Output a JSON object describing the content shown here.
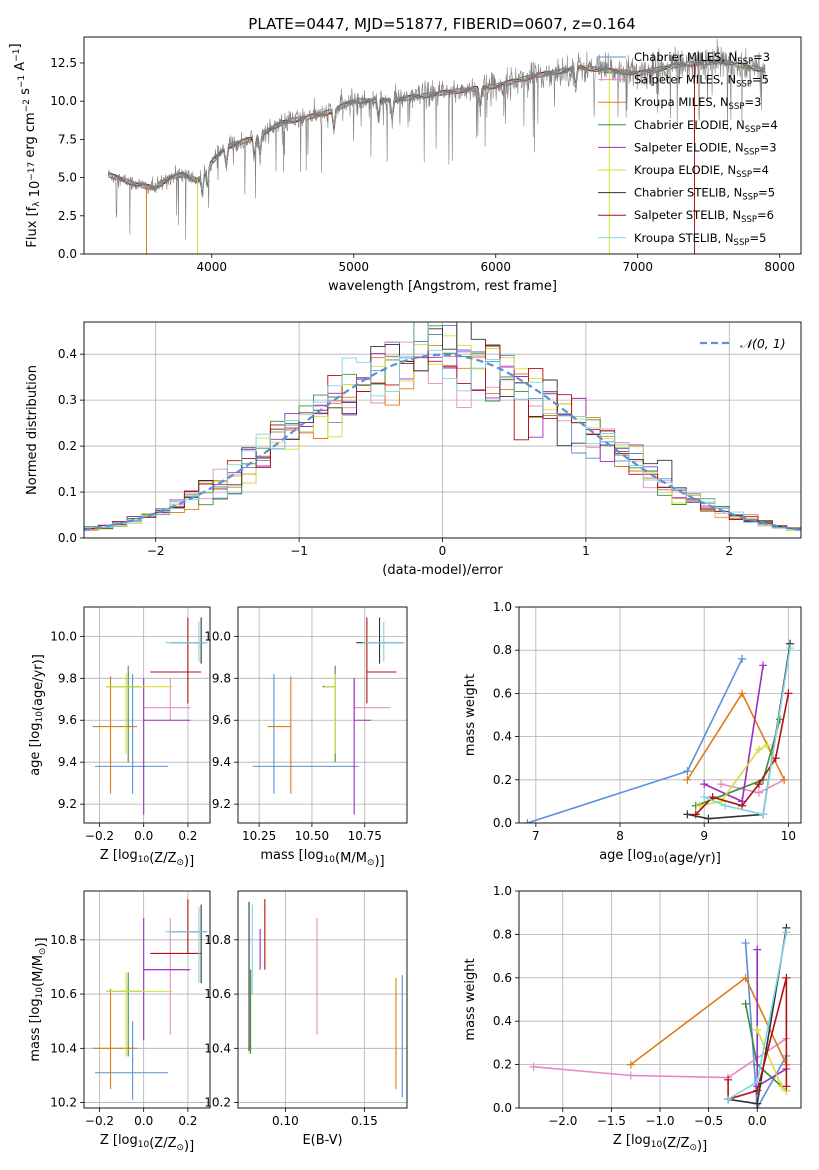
{
  "figure_title": "PLATE=0447, MJD=51877, FIBERID=0607, z=0.164",
  "colors": {
    "Chabrier MILES": "#5b8fd8",
    "Salpeter MILES": "#e889c4",
    "Kroupa MILES": "#e07b1a",
    "Chabrier ELODIE": "#3a8f3a",
    "Salpeter ELODIE": "#9b2fc4",
    "Kroupa ELODIE": "#d6df35",
    "Chabrier STELIB": "#333333",
    "Salpeter STELIB": "#b01010",
    "Kroupa STELIB": "#7fd6e0",
    "observed": "#808080"
  },
  "chart_data": [
    {
      "id": "spectrum",
      "type": "line",
      "title": "PLATE=0447, MJD=51877, FIBERID=0607, z=0.164",
      "xlabel": "wavelength [Angstrom, rest frame]",
      "ylabel": "Flux [f_λ 10^-17 erg cm^-2 s^-1 A^-1]",
      "xlim": [
        3100,
        8150
      ],
      "ylim": [
        0,
        14.2
      ],
      "xticks": [
        "4000",
        "5000",
        "6000",
        "7000",
        "8000"
      ],
      "yticks": [
        "0.0",
        "2.5",
        "5.0",
        "7.5",
        "10.0",
        "12.5"
      ],
      "legend_position": "right",
      "legend": [
        {
          "label": "Chabrier MILES, N_SSP=3",
          "base": "Chabrier MILES, N",
          "sub": "SSP",
          "tail": "=3",
          "color": "Chabrier MILES"
        },
        {
          "label": "Salpeter MILES, N_SSP=5",
          "base": "Salpeter MILES, N",
          "sub": "SSP",
          "tail": "=5",
          "color": "Salpeter MILES"
        },
        {
          "label": "Kroupa MILES, N_SSP=3",
          "base": "Kroupa MILES, N",
          "sub": "SSP",
          "tail": "=3",
          "color": "Kroupa MILES"
        },
        {
          "label": "Chabrier ELODIE, N_SSP=4",
          "base": "Chabrier ELODIE, N",
          "sub": "SSP",
          "tail": "=4",
          "color": "Chabrier ELODIE"
        },
        {
          "label": "Salpeter ELODIE, N_SSP=3",
          "base": "Salpeter ELODIE, N",
          "sub": "SSP",
          "tail": "=3",
          "color": "Salpeter ELODIE"
        },
        {
          "label": "Kroupa ELODIE, N_SSP=4",
          "base": "Kroupa ELODIE, N",
          "sub": "SSP",
          "tail": "=4",
          "color": "Kroupa ELODIE"
        },
        {
          "label": "Chabrier STELIB, N_SSP=5",
          "base": "Chabrier STELIB, N",
          "sub": "SSP",
          "tail": "=5",
          "color": "Chabrier STELIB"
        },
        {
          "label": "Salpeter STELIB, N_SSP=6",
          "base": "Salpeter STELIB, N",
          "sub": "SSP",
          "tail": "=6",
          "color": "Salpeter STELIB"
        },
        {
          "label": "Kroupa STELIB, N_SSP=5",
          "base": "Kroupa STELIB, N",
          "sub": "SSP",
          "tail": "=5",
          "color": "Kroupa STELIB"
        }
      ],
      "continuum": [
        [
          3270,
          5.2
        ],
        [
          3450,
          4.6
        ],
        [
          3600,
          4.3
        ],
        [
          3700,
          5.0
        ],
        [
          3800,
          5.2
        ],
        [
          3900,
          4.8
        ],
        [
          4000,
          6.0
        ],
        [
          4100,
          7.0
        ],
        [
          4300,
          7.6
        ],
        [
          4500,
          8.6
        ],
        [
          4800,
          9.2
        ],
        [
          5000,
          10.0
        ],
        [
          5300,
          10.1
        ],
        [
          5600,
          10.5
        ],
        [
          6000,
          11.0
        ],
        [
          6300,
          11.7
        ],
        [
          6600,
          12.2
        ],
        [
          7000,
          11.8
        ],
        [
          7300,
          12.4
        ],
        [
          7600,
          12.6
        ],
        [
          7900,
          12.0
        ]
      ],
      "model_range": [
        3270,
        7900
      ],
      "model_cutoffs": [
        {
          "series": "Kroupa MILES",
          "x": 3540
        },
        {
          "series": "Kroupa ELODIE",
          "x": 3900
        },
        {
          "series": "Kroupa ELODIE",
          "x": 6800
        },
        {
          "series": "Salpeter STELIB",
          "x": 7400
        }
      ]
    },
    {
      "id": "residuals",
      "type": "histogram",
      "xlabel": "(data-model)/error",
      "ylabel": "Normed distribution",
      "xlim": [
        -2.5,
        2.5
      ],
      "ylim": [
        0,
        0.47
      ],
      "xticks": [
        "−2",
        "−1",
        "0",
        "1",
        "2"
      ],
      "yticks": [
        "0.0",
        "0.1",
        "0.2",
        "0.3",
        "0.4"
      ],
      "grid": true,
      "legend_position": "upper right",
      "legend_label": "𝒩(0, 1)",
      "reference_curve": {
        "name": "𝒩(0, 1)",
        "mean": 0,
        "sigma": 1,
        "color": "Chabrier MILES",
        "style": "dashed"
      },
      "bin_width": 0.1
    },
    {
      "id": "age-vs-Z",
      "type": "scatter",
      "xlabel": "Z [log10(Z/Z⊙)]",
      "ylabel": "age [log10(age/yr)]",
      "xlim": [
        -0.27,
        0.3
      ],
      "ylim": [
        9.11,
        10.14
      ],
      "xticks": [
        "−0.2",
        "0.0",
        "0.2"
      ],
      "yticks": [
        "9.2",
        "9.4",
        "9.6",
        "9.8",
        "10.0"
      ],
      "grid": true,
      "points": [
        {
          "series": "Chabrier MILES",
          "x": -0.05,
          "xerr": [
            0.17,
            0.16
          ],
          "y": 9.38,
          "yerr": [
            0.13,
            0.44
          ]
        },
        {
          "series": "Salpeter MILES",
          "x": 0.12,
          "xerr": [
            0.12,
            0.09
          ],
          "y": 9.66,
          "yerr": [
            0.06,
            0.14
          ]
        },
        {
          "series": "Kroupa MILES",
          "x": -0.15,
          "xerr": [
            0.08,
            0.12
          ],
          "y": 9.57,
          "yerr": [
            0.32,
            0.24
          ]
        },
        {
          "series": "Chabrier ELODIE",
          "x": -0.07,
          "xerr": [
            0.1,
            0.06
          ],
          "y": 9.76,
          "yerr": [
            0.36,
            0.1
          ]
        },
        {
          "series": "Salpeter ELODIE",
          "x": 0.0,
          "xerr": [
            0.0,
            0.21
          ],
          "y": 9.6,
          "yerr": [
            0.45,
            0.2
          ]
        },
        {
          "series": "Kroupa ELODIE",
          "x": -0.08,
          "xerr": [
            0.09,
            0.21
          ],
          "y": 9.76,
          "yerr": [
            0.32,
            0.06
          ]
        },
        {
          "series": "Chabrier STELIB",
          "x": 0.26,
          "xerr": [
            0.14,
            0.02
          ],
          "y": 9.97,
          "yerr": [
            0.1,
            0.12
          ]
        },
        {
          "series": "Salpeter STELIB",
          "x": 0.2,
          "xerr": [
            0.17,
            0.06
          ],
          "y": 9.83,
          "yerr": [
            0.15,
            0.26
          ]
        },
        {
          "series": "Kroupa STELIB",
          "x": 0.25,
          "xerr": [
            0.15,
            0.04
          ],
          "y": 9.97,
          "yerr": [
            0.09,
            0.1
          ]
        }
      ]
    },
    {
      "id": "age-vs-mass",
      "type": "scatter",
      "xlabel": "mass [log10(M/M⊙)]",
      "ylabel": "",
      "xlim": [
        10.15,
        10.95
      ],
      "ylim": [
        9.11,
        10.14
      ],
      "xticks": [
        "10.25",
        "10.50",
        "10.75"
      ],
      "yticks": [
        "9.2",
        "9.4",
        "9.6",
        "9.8",
        "10.0"
      ],
      "grid": true,
      "points": [
        {
          "series": "Chabrier MILES",
          "x": 10.32,
          "xerr": [
            0.1,
            0.4
          ],
          "y": 9.38,
          "yerr": [
            0.13,
            0.44
          ]
        },
        {
          "series": "Salpeter MILES",
          "x": 10.7,
          "xerr": [
            0.0,
            0.17
          ],
          "y": 9.66,
          "yerr": [
            0.06,
            0.14
          ]
        },
        {
          "series": "Kroupa MILES",
          "x": 10.4,
          "xerr": [
            0.11,
            0.0
          ],
          "y": 9.57,
          "yerr": [
            0.32,
            0.24
          ]
        },
        {
          "series": "Chabrier ELODIE",
          "x": 10.61,
          "xerr": [
            0.06,
            0.0
          ],
          "y": 9.76,
          "yerr": [
            0.36,
            0.1
          ]
        },
        {
          "series": "Salpeter ELODIE",
          "x": 10.7,
          "xerr": [
            0.0,
            0.08
          ],
          "y": 9.6,
          "yerr": [
            0.45,
            0.2
          ]
        },
        {
          "series": "Kroupa ELODIE",
          "x": 10.61,
          "xerr": [
            0.05,
            0.0
          ],
          "y": 9.76,
          "yerr": [
            0.32,
            0.06
          ]
        },
        {
          "series": "Chabrier STELIB",
          "x": 10.82,
          "xerr": [
            0.11,
            0.11
          ],
          "y": 9.97,
          "yerr": [
            0.1,
            0.12
          ]
        },
        {
          "series": "Salpeter STELIB",
          "x": 10.76,
          "xerr": [
            0.0,
            0.14
          ],
          "y": 9.83,
          "yerr": [
            0.15,
            0.26
          ]
        },
        {
          "series": "Kroupa STELIB",
          "x": 10.84,
          "xerr": [
            0.1,
            0.1
          ],
          "y": 9.97,
          "yerr": [
            0.09,
            0.1
          ]
        }
      ]
    },
    {
      "id": "weight-vs-age",
      "type": "line",
      "xlabel": "age [log10(age/yr)]",
      "ylabel": "mass weight",
      "xlim": [
        6.8,
        10.15
      ],
      "ylim": [
        0,
        1
      ],
      "xticks": [
        "7",
        "8",
        "9",
        "10"
      ],
      "yticks": [
        "0.0",
        "0.2",
        "0.4",
        "0.6",
        "0.8",
        "1.0"
      ],
      "grid": true,
      "series": [
        {
          "name": "Chabrier MILES",
          "x": [
            6.9,
            8.8,
            9.45
          ],
          "y": [
            0.0,
            0.24,
            0.76
          ]
        },
        {
          "name": "Salpeter MILES",
          "x": [
            9.2,
            9.65,
            9.95
          ],
          "y": [
            0.18,
            0.14,
            0.2
          ]
        },
        {
          "name": "Kroupa MILES",
          "x": [
            8.8,
            9.45,
            9.95
          ],
          "y": [
            0.2,
            0.6,
            0.2
          ]
        },
        {
          "name": "Chabrier ELODIE",
          "x": [
            8.9,
            9.7,
            9.9
          ],
          "y": [
            0.08,
            0.2,
            0.48
          ]
        },
        {
          "name": "Salpeter ELODIE",
          "x": [
            9.0,
            9.45,
            9.7
          ],
          "y": [
            0.18,
            0.1,
            0.73
          ]
        },
        {
          "name": "Kroupa ELODIE",
          "x": [
            8.95,
            9.2,
            9.65,
            9.75
          ],
          "y": [
            0.08,
            0.1,
            0.34,
            0.36
          ]
        },
        {
          "name": "Chabrier STELIB",
          "x": [
            8.8,
            9.05,
            9.7,
            10.02
          ],
          "y": [
            0.04,
            0.02,
            0.04,
            0.83
          ]
        },
        {
          "name": "Salpeter STELIB",
          "x": [
            8.9,
            9.1,
            9.45,
            9.65,
            9.85,
            10.0
          ],
          "y": [
            0.04,
            0.12,
            0.08,
            0.18,
            0.3,
            0.6
          ]
        },
        {
          "name": "Kroupa STELIB",
          "x": [
            9.0,
            9.25,
            9.7,
            10.02
          ],
          "y": [
            0.12,
            0.08,
            0.04,
            0.81
          ]
        }
      ]
    },
    {
      "id": "mass-vs-Z",
      "type": "scatter",
      "xlabel": "Z [log10(Z/Z⊙)]",
      "ylabel": "mass [log10(M/M⊙)]",
      "xlim": [
        -0.27,
        0.3
      ],
      "ylim": [
        10.18,
        10.98
      ],
      "xticks": [
        "−0.2",
        "0.0",
        "0.2"
      ],
      "yticks": [
        "10.2",
        "10.4",
        "10.6",
        "10.8"
      ],
      "grid": true,
      "points": [
        {
          "series": "Chabrier MILES",
          "x": -0.05,
          "xerr": [
            0.17,
            0.16
          ],
          "y": 10.31,
          "yerr": [
            0.1,
            0.19
          ]
        },
        {
          "series": "Salpeter MILES",
          "x": 0.12,
          "xerr": [
            0.12,
            0.09
          ],
          "y": 10.69,
          "yerr": [
            0.24,
            0.19
          ]
        },
        {
          "series": "Kroupa MILES",
          "x": -0.15,
          "xerr": [
            0.08,
            0.12
          ],
          "y": 10.4,
          "yerr": [
            0.15,
            0.22
          ]
        },
        {
          "series": "Chabrier ELODIE",
          "x": -0.07,
          "xerr": [
            0.1,
            0.06
          ],
          "y": 10.61,
          "yerr": [
            0.24,
            0.07
          ]
        },
        {
          "series": "Salpeter ELODIE",
          "x": 0.0,
          "xerr": [
            0.0,
            0.21
          ],
          "y": 10.69,
          "yerr": [
            0.26,
            0.19
          ]
        },
        {
          "series": "Kroupa ELODIE",
          "x": -0.08,
          "xerr": [
            0.09,
            0.21
          ],
          "y": 10.61,
          "yerr": [
            0.24,
            0.07
          ]
        },
        {
          "series": "Chabrier STELIB",
          "x": 0.26,
          "xerr": [
            0.14,
            0.02
          ],
          "y": 10.83,
          "yerr": [
            0.19,
            0.1
          ]
        },
        {
          "series": "Salpeter STELIB",
          "x": 0.2,
          "xerr": [
            0.17,
            0.06
          ],
          "y": 10.75,
          "yerr": [
            0.0,
            0.2
          ]
        },
        {
          "series": "Kroupa STELIB",
          "x": 0.25,
          "xerr": [
            0.15,
            0.04
          ],
          "y": 10.83,
          "yerr": [
            0.19,
            0.09
          ]
        }
      ]
    },
    {
      "id": "mass-vs-ebv",
      "type": "scatter",
      "xlabel": "E(B-V)",
      "ylabel": "",
      "xlim": [
        0.07,
        0.177
      ],
      "ylim": [
        10.18,
        10.98
      ],
      "xticks": [
        "0.10",
        "0.15"
      ],
      "yticks": [
        "10.2",
        "10.4",
        "10.6",
        "10.8"
      ],
      "grid": true,
      "points": [
        {
          "series": "Chabrier MILES",
          "x": 0.174,
          "y": 10.44,
          "yerr": [
            0.22,
            0.23
          ]
        },
        {
          "series": "Salpeter MILES",
          "x": 0.12,
          "y": 10.67,
          "yerr": [
            0.22,
            0.21
          ]
        },
        {
          "series": "Kroupa MILES",
          "x": 0.17,
          "y": 10.46,
          "yerr": [
            0.21,
            0.2
          ]
        },
        {
          "series": "Chabrier ELODIE",
          "x": 0.078,
          "y": 10.62,
          "yerr": [
            0.24,
            0.07
          ]
        },
        {
          "series": "Salpeter ELODIE",
          "x": 0.084,
          "y": 10.74,
          "yerr": [
            0.05,
            0.1
          ]
        },
        {
          "series": "Kroupa ELODIE",
          "x": 0.077,
          "y": 10.62,
          "yerr": [
            0.24,
            0.07
          ]
        },
        {
          "series": "Chabrier STELIB",
          "x": 0.077,
          "y": 10.66,
          "yerr": [
            0.27,
            0.28
          ]
        },
        {
          "series": "Salpeter STELIB",
          "x": 0.087,
          "y": 10.77,
          "yerr": [
            0.08,
            0.18
          ]
        },
        {
          "series": "Kroupa STELIB",
          "x": 0.079,
          "y": 10.66,
          "yerr": [
            0.06,
            0.27
          ]
        }
      ]
    },
    {
      "id": "weight-vs-Z",
      "type": "line",
      "xlabel": "Z [log10(Z/Z⊙)]",
      "ylabel": "mass weight",
      "xlim": [
        -2.45,
        0.45
      ],
      "ylim": [
        0,
        1
      ],
      "xticks": [
        "−2.0",
        "−1.5",
        "−1.0",
        "−0.5",
        "0.0"
      ],
      "yticks": [
        "0.0",
        "0.2",
        "0.4",
        "0.6",
        "0.8",
        "1.0"
      ],
      "grid": true,
      "series": [
        {
          "name": "Chabrier MILES",
          "x": [
            -0.12,
            0.0,
            0.3
          ],
          "y": [
            0.76,
            0.0,
            0.24
          ]
        },
        {
          "name": "Salpeter MILES",
          "x": [
            -2.3,
            -1.3,
            -0.3,
            0.3
          ],
          "y": [
            0.19,
            0.15,
            0.14,
            0.32
          ]
        },
        {
          "name": "Kroupa MILES",
          "x": [
            -1.3,
            -0.12,
            0.3
          ],
          "y": [
            0.2,
            0.6,
            0.2
          ]
        },
        {
          "name": "Chabrier ELODIE",
          "x": [
            -0.12,
            0.0,
            0.3
          ],
          "y": [
            0.48,
            0.2,
            0.08
          ]
        },
        {
          "name": "Salpeter ELODIE",
          "x": [
            0.0,
            0.0,
            0.3
          ],
          "y": [
            0.73,
            0.1,
            0.18
          ]
        },
        {
          "name": "Kroupa ELODIE",
          "x": [
            0.0,
            0.25,
            0.3
          ],
          "y": [
            0.36,
            0.1,
            0.08
          ]
        },
        {
          "name": "Chabrier STELIB",
          "x": [
            -0.3,
            0.0,
            0.3
          ],
          "y": [
            0.04,
            0.02,
            0.83
          ]
        },
        {
          "name": "Salpeter STELIB",
          "x": [
            -0.3,
            -0.3,
            0.0,
            0.3,
            0.3
          ],
          "y": [
            0.13,
            0.04,
            0.08,
            0.6,
            0.1
          ]
        },
        {
          "name": "Kroupa STELIB",
          "x": [
            -0.3,
            0.0,
            0.3
          ],
          "y": [
            0.04,
            0.12,
            0.81
          ]
        }
      ]
    }
  ]
}
